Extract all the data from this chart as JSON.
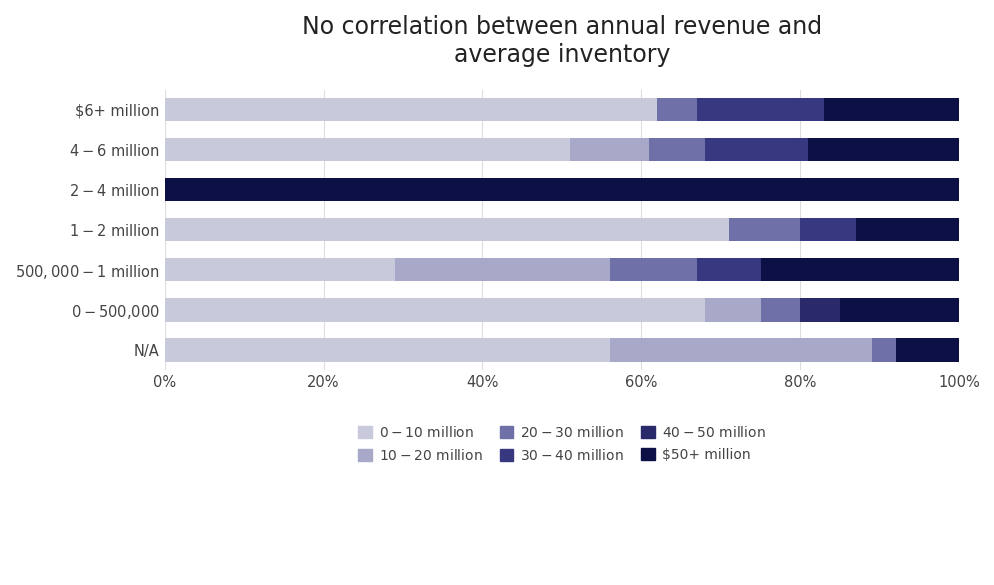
{
  "title": "No correlation between annual revenue and\naverage inventory",
  "categories": [
    "N/A",
    "$0 - $500,000",
    "$500,000 - $1 million",
    "$1 - $2 million",
    "$2 - $4 million",
    "$4 - $6 million",
    "$6+ million"
  ],
  "segments": {
    "$0-$10 million": [
      56,
      68,
      29,
      71,
      0,
      51,
      62
    ],
    "$10-$20 million": [
      33,
      7,
      27,
      0,
      0,
      10,
      0
    ],
    "$20-$30 million": [
      3,
      5,
      11,
      9,
      0,
      7,
      5
    ],
    "$30-$40 million": [
      0,
      0,
      8,
      7,
      0,
      13,
      16
    ],
    "$40-$50 million": [
      0,
      5,
      0,
      0,
      0,
      0,
      0
    ],
    "$50+ million": [
      8,
      15,
      25,
      13,
      100,
      19,
      17
    ]
  },
  "colors": {
    "$0-$10 million": "#c9c9dc",
    "$10-$20 million": "#a8a8c8",
    "$20-$30 million": "#7070a8",
    "$30-$40 million": "#383880",
    "$40-$50 million": "#2a2a6a",
    "$50+ million": "#0c1045"
  },
  "legend_labels": [
    "$0-$10 million",
    "$10-$20 million",
    "$20-$30 million",
    "$30-$40 million",
    "$40-$50 million",
    "$50+ million"
  ],
  "background_color": "#ffffff",
  "title_fontsize": 17,
  "tick_fontsize": 10.5,
  "legend_fontsize": 10
}
